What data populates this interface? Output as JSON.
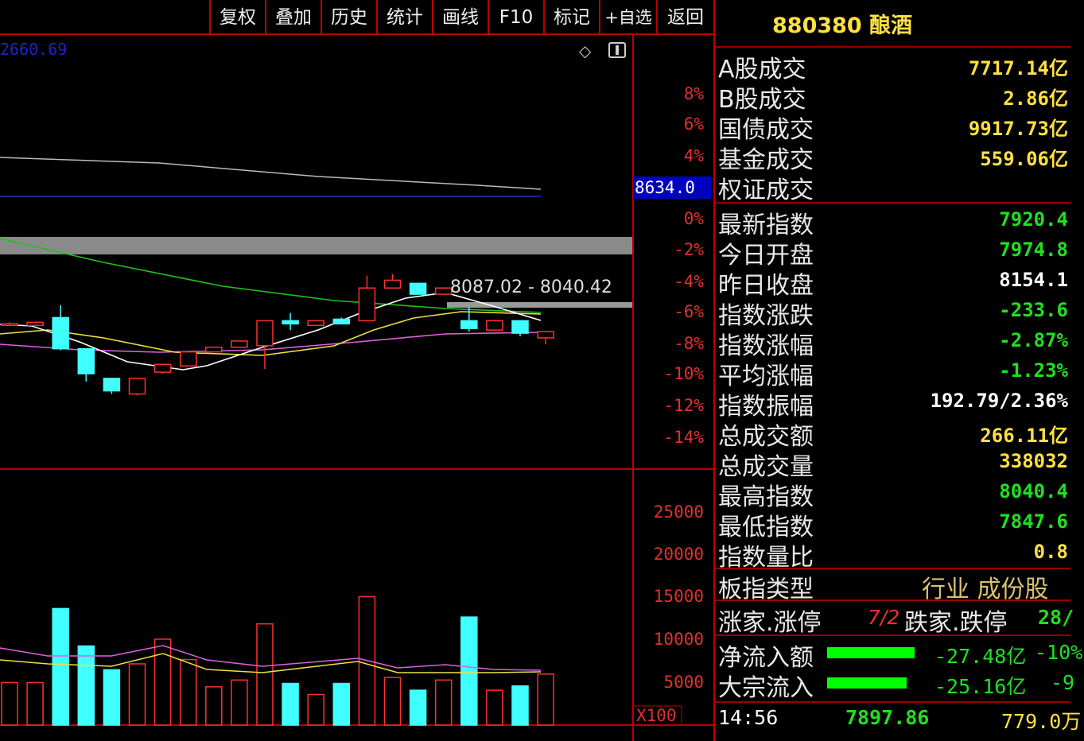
{
  "toolbar": {
    "items": [
      "复权",
      "叠加",
      "历史",
      "统计",
      "画线",
      "F10",
      "标记",
      "+自选",
      "返回"
    ]
  },
  "chart": {
    "top_value": "2660.69",
    "cursor_value": "8634.0",
    "range_label": "8087.02 - 8040.42",
    "pct_ticks": [
      "8%",
      "6%",
      "4%",
      "0%",
      "-2%",
      "-4%",
      "-6%",
      "-8%",
      "-10%",
      "-12%",
      "-14%"
    ],
    "vol_ticks": [
      "25000",
      "20000",
      "15000",
      "10000",
      "5000"
    ],
    "vol_unit": "X100",
    "colors": {
      "up": "#ff3030",
      "down": "#40ffff",
      "ma1": "#ffffff",
      "ma2": "#f0e040",
      "ma3": "#e060e0",
      "ma4": "#20c020"
    },
    "candles_pct_ohlc": [
      [
        -6.7,
        -6.6,
        -6.8,
        -6.7
      ],
      [
        -6.8,
        -6.6,
        -6.8,
        -6.6
      ],
      [
        -6.3,
        -5.5,
        -8.4,
        -8.3
      ],
      [
        -8.3,
        -8.3,
        -10.4,
        -9.9
      ],
      [
        -10.2,
        -10.2,
        -11.2,
        -11.0
      ],
      [
        -11.2,
        -10.2,
        -11.3,
        -10.2
      ],
      [
        -9.8,
        -9.3,
        -9.9,
        -9.3
      ],
      [
        -9.4,
        -8.5,
        -9.4,
        -8.5
      ],
      [
        -8.5,
        -8.2,
        -8.5,
        -8.2
      ],
      [
        -8.2,
        -7.8,
        -8.2,
        -7.8
      ],
      [
        -8.1,
        -6.5,
        -9.6,
        -6.5
      ],
      [
        -6.5,
        -6.0,
        -7.1,
        -6.7
      ],
      [
        -6.8,
        -6.5,
        -6.8,
        -6.5
      ],
      [
        -6.4,
        -6.3,
        -6.7,
        -6.7
      ],
      [
        -6.5,
        -3.6,
        -6.5,
        -4.4
      ],
      [
        -4.4,
        -3.5,
        -4.4,
        -3.9
      ],
      [
        -4.1,
        -4.1,
        -4.8,
        -4.8
      ],
      [
        -4.8,
        -4.4,
        -4.8,
        -4.4
      ],
      [
        -6.5,
        -5.6,
        -7.2,
        -7.0
      ],
      [
        -7.1,
        -6.5,
        -7.1,
        -6.5
      ],
      [
        -6.5,
        -6.5,
        -7.5,
        -7.3
      ],
      [
        -7.6,
        -7.2,
        -8.0,
        -7.2
      ]
    ],
    "volumes": [
      5000,
      5000,
      13700,
      9300,
      6500,
      7200,
      10100,
      7700,
      4500,
      5300,
      11900,
      4900,
      3600,
      4900,
      15100,
      5600,
      4100,
      5300,
      12700,
      4100,
      4600,
      6000
    ]
  },
  "panel": {
    "title": "880380 酿酒",
    "rows": [
      {
        "label": "A股成交",
        "value": "7717.14亿",
        "color": "y"
      },
      {
        "label": "B股成交",
        "value": "2.86亿",
        "color": "y"
      },
      {
        "label": "国债成交",
        "value": "9917.73亿",
        "color": "y"
      },
      {
        "label": "基金成交",
        "value": "559.06亿",
        "color": "y"
      },
      {
        "label": "权证成交",
        "value": "",
        "color": "y"
      },
      {
        "label": "最新指数",
        "value": "7920.4",
        "color": "g"
      },
      {
        "label": "今日开盘",
        "value": "7974.8",
        "color": "g"
      },
      {
        "label": "昨日收盘",
        "value": "8154.1",
        "color": "w"
      },
      {
        "label": "指数涨跌",
        "value": "-233.6",
        "color": "g"
      },
      {
        "label": "指数涨幅",
        "value": "-2.87%",
        "color": "g"
      },
      {
        "label": "平均涨幅",
        "value": "-1.23%",
        "color": "g"
      },
      {
        "label": "指数振幅",
        "value": "192.79/2.36%",
        "color": "w"
      },
      {
        "label": "总成交额",
        "value": "266.11亿",
        "color": "y"
      },
      {
        "label": "总成交量",
        "value": "338032",
        "color": "y"
      },
      {
        "label": "最高指数",
        "value": "8040.4",
        "color": "g"
      },
      {
        "label": "最低指数",
        "value": "7847.6",
        "color": "g"
      },
      {
        "label": "指数量比",
        "value": "0.8",
        "color": "y"
      }
    ],
    "type_label": "板指类型",
    "type_value": "行业 成份股",
    "up_label": "涨家.涨停",
    "up_value": "7/2",
    "down_label": "跌家.跌停",
    "down_value": "28/",
    "inflow": {
      "label": "净流入额",
      "value": "-27.48亿",
      "pct": "-10%"
    },
    "block": {
      "label": "大宗流入",
      "value": "-25.16亿",
      "pct": "-9"
    },
    "tick": {
      "time": "14:56",
      "price": "7897.86",
      "volume": "779.0万"
    }
  }
}
